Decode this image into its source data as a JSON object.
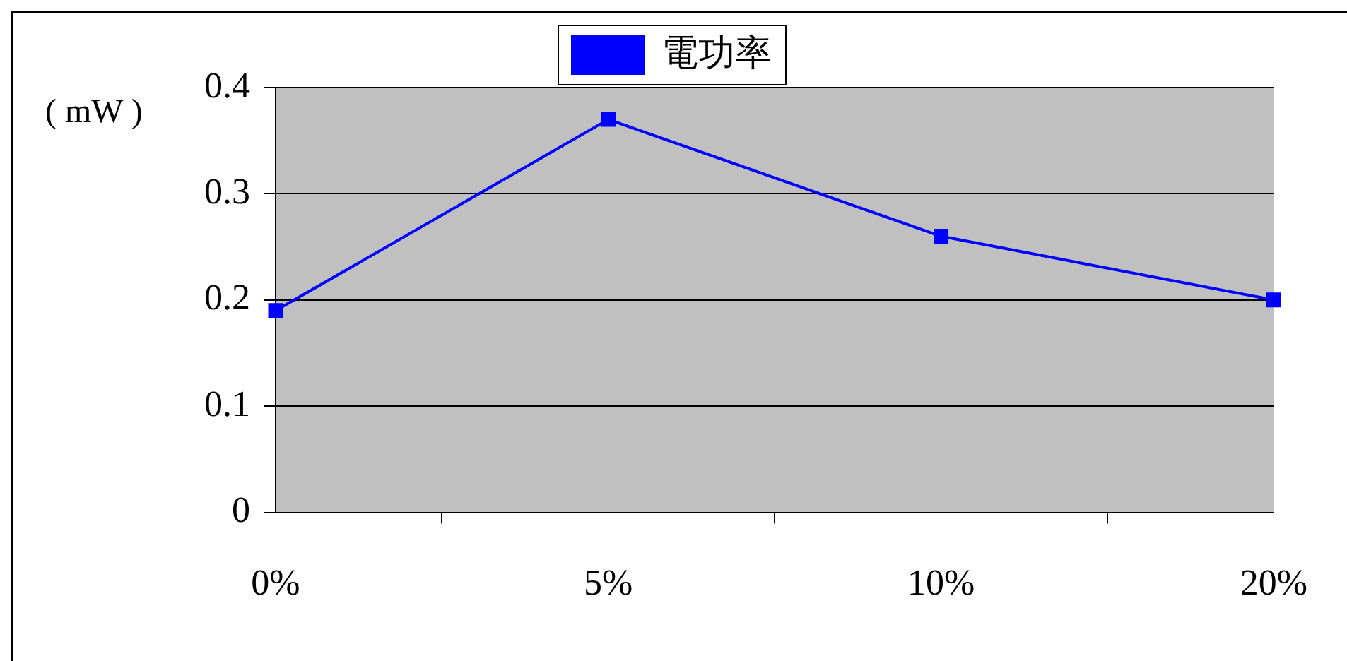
{
  "chart_data": {
    "type": "line",
    "ylabel": "( mW )",
    "categories": [
      "0%",
      "5%",
      "10%",
      "20%"
    ],
    "series": [
      {
        "name": "電功率",
        "color": "#0000ff",
        "values": [
          0.19,
          0.37,
          0.26,
          0.2
        ]
      }
    ],
    "ylim": [
      0,
      0.4
    ],
    "yticks": [
      0,
      0.1,
      0.2,
      0.3,
      0.4
    ],
    "grid": "y",
    "legend": "top",
    "marker": "square",
    "line_style": "solid"
  }
}
